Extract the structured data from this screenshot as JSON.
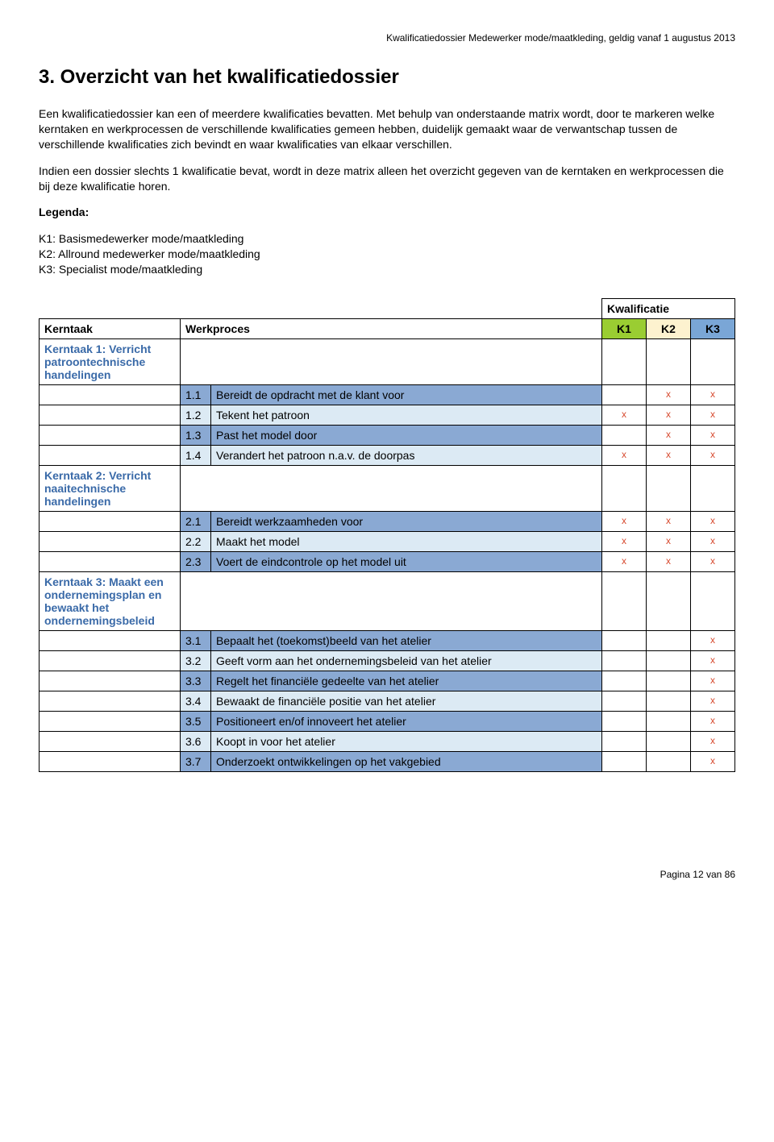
{
  "header": {
    "running": "Kwalificatiedossier Medewerker mode/maatkleding, geldig vanaf 1 augustus 2013"
  },
  "title": "3. Overzicht van het kwalificatiedossier",
  "paragraphs": {
    "p1": "Een kwalificatiedossier kan een of meerdere kwalificaties bevatten. Met behulp van onderstaande matrix wordt, door te markeren welke kerntaken en werkprocessen de verschillende kwalificaties gemeen hebben, duidelijk gemaakt waar de verwantschap tussen de verschillende kwalificaties zich bevindt en waar kwalificaties van elkaar verschillen.",
    "p2": "Indien een dossier slechts 1 kwalificatie bevat, wordt in deze matrix alleen het overzicht gegeven van de kerntaken en werkprocessen die bij deze kwalificatie horen."
  },
  "legenda": {
    "title": "Legenda:",
    "k1": "K1: Basismedewerker mode/maatkleding",
    "k2": "K2: Allround medewerker mode/maatkleding",
    "k3": "K3: Specialist mode/maatkleding"
  },
  "table": {
    "hdr_kwal": "Kwalificatie",
    "hdr_kerntaak": "Kerntaak",
    "hdr_werkproces": "Werkproces",
    "k_labels": [
      "K1",
      "K2",
      "K3"
    ],
    "k_colors": [
      "#9acd32",
      "#fdf2cf",
      "#7aa6d6"
    ],
    "row_colors": {
      "dark": "#8aa9d3",
      "light": "#dceaf4"
    },
    "x_mark": "x",
    "sections": [
      {
        "title": "Kerntaak 1: Verricht patroontechnische handelingen",
        "rows": [
          {
            "num": "1.1",
            "text": "Bereidt de opdracht met de klant voor",
            "marks": [
              "",
              "x",
              "x"
            ],
            "shade": "dark"
          },
          {
            "num": "1.2",
            "text": "Tekent het patroon",
            "marks": [
              "x",
              "x",
              "x"
            ],
            "shade": "light"
          },
          {
            "num": "1.3",
            "text": "Past het model door",
            "marks": [
              "",
              "x",
              "x"
            ],
            "shade": "dark"
          },
          {
            "num": "1.4",
            "text": "Verandert het patroon n.a.v. de doorpas",
            "marks": [
              "x",
              "x",
              "x"
            ],
            "shade": "light"
          }
        ]
      },
      {
        "title": "Kerntaak 2: Verricht naaitechnische handelingen",
        "rows": [
          {
            "num": "2.1",
            "text": "Bereidt werkzaamheden voor",
            "marks": [
              "x",
              "x",
              "x"
            ],
            "shade": "dark"
          },
          {
            "num": "2.2",
            "text": "Maakt het model",
            "marks": [
              "x",
              "x",
              "x"
            ],
            "shade": "light"
          },
          {
            "num": "2.3",
            "text": "Voert de eindcontrole op het model uit",
            "marks": [
              "x",
              "x",
              "x"
            ],
            "shade": "dark"
          }
        ]
      },
      {
        "title": "Kerntaak 3: Maakt een ondernemingsplan en bewaakt het ondernemingsbeleid",
        "rows": [
          {
            "num": "3.1",
            "text": "Bepaalt het (toekomst)beeld van het atelier",
            "marks": [
              "",
              "",
              "x"
            ],
            "shade": "dark"
          },
          {
            "num": "3.2",
            "text": "Geeft vorm aan het ondernemingsbeleid van het atelier",
            "marks": [
              "",
              "",
              "x"
            ],
            "shade": "light"
          },
          {
            "num": "3.3",
            "text": "Regelt het financiële gedeelte van het atelier",
            "marks": [
              "",
              "",
              "x"
            ],
            "shade": "dark"
          },
          {
            "num": "3.4",
            "text": "Bewaakt de financiële positie van het atelier",
            "marks": [
              "",
              "",
              "x"
            ],
            "shade": "light"
          },
          {
            "num": "3.5",
            "text": "Positioneert en/of innoveert het atelier",
            "marks": [
              "",
              "",
              "x"
            ],
            "shade": "dark"
          },
          {
            "num": "3.6",
            "text": "Koopt in voor het atelier",
            "marks": [
              "",
              "",
              "x"
            ],
            "shade": "light"
          },
          {
            "num": "3.7",
            "text": "Onderzoekt ontwikkelingen op het vakgebied",
            "marks": [
              "",
              "",
              "x"
            ],
            "shade": "dark"
          }
        ]
      }
    ]
  },
  "footer": "Pagina 12 van 86"
}
